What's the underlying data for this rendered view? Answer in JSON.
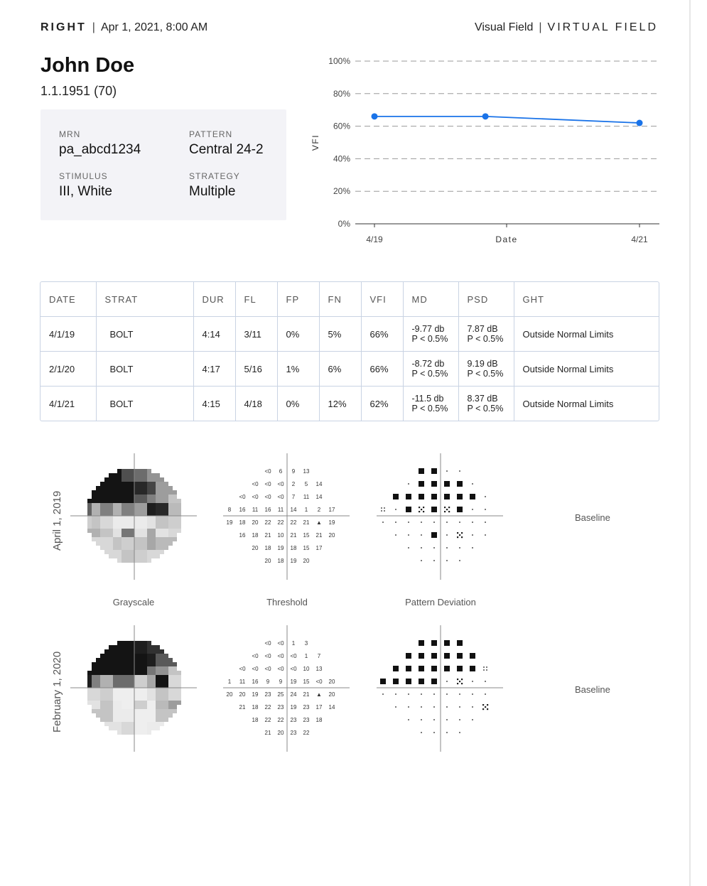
{
  "header": {
    "eye": "RIGHT",
    "datetime": "Apr 1, 2021,  8:00 AM",
    "test_type": "Visual Field",
    "brand": "VIRTUAL FIELD"
  },
  "patient": {
    "name": "John Doe",
    "dob_age": "1.1.1951 (70)"
  },
  "info": {
    "mrn_label": "MRN",
    "mrn": "pa_abcd1234",
    "pattern_label": "PATTERN",
    "pattern": "Central 24-2",
    "stimulus_label": "STIMULUS",
    "stimulus": "III, White",
    "strategy_label": "STRATEGY",
    "strategy": "Multiple"
  },
  "chart_data": {
    "type": "line",
    "ylabel": "VFI",
    "xlabel": "Date",
    "yticks": [
      "0%",
      "20%",
      "40%",
      "60%",
      "80%",
      "100%"
    ],
    "ylim": [
      0,
      100
    ],
    "xtick_labels": [
      "4/19",
      "4/21"
    ],
    "x": [
      "2019-04-01",
      "2020-02-01",
      "2021-04-01"
    ],
    "values": [
      66,
      66,
      62
    ],
    "grid": true,
    "line_color": "#1a73e8"
  },
  "table": {
    "headers": [
      "DATE",
      "STRAT",
      "DUR",
      "FL",
      "FP",
      "FN",
      "VFI",
      "MD",
      "PSD",
      "GHT"
    ],
    "rows": [
      {
        "date": "4/1/19",
        "strat": "BOLT",
        "dur": "4:14",
        "fl": "3/11",
        "fl_flag": true,
        "fp": "0%",
        "fn": "5%",
        "vfi": "66%",
        "md": "-9.77 db",
        "md_p": "P < 0.5%",
        "psd": "7.87 dB",
        "psd_p": "P < 0.5%",
        "ght": "Outside Normal Limits"
      },
      {
        "date": "2/1/20",
        "strat": "BOLT",
        "dur": "4:17",
        "fl": "5/16",
        "fl_flag": true,
        "fp": "1%",
        "fn": "6%",
        "vfi": "66%",
        "md": "-8.72 db",
        "md_p": "P < 0.5%",
        "psd": "9.19 dB",
        "psd_p": "P < 0.5%",
        "ght": "Outside Normal Limits"
      },
      {
        "date": "4/1/21",
        "strat": "BOLT",
        "dur": "4:15",
        "fl": "4/18",
        "fl_flag": false,
        "fp": "0%",
        "fn": "12%",
        "vfi": "62%",
        "md": "-11.5 db",
        "md_p": "P < 0.5%",
        "psd": "8.37 dB",
        "psd_p": "P < 0.5%",
        "ght": "Outside Normal Limits"
      }
    ]
  },
  "captions": {
    "grayscale": "Grayscale",
    "threshold": "Threshold",
    "pattern_deviation": "Pattern Deviation"
  },
  "exams": [
    {
      "date_label": "April 1, 2019",
      "baseline": "Baseline",
      "threshold": [
        [
          "<0",
          "6",
          "9",
          "13"
        ],
        [
          "<0",
          "<0",
          "<0",
          "2",
          "5",
          "14"
        ],
        [
          "<0",
          "<0",
          "<0",
          "<0",
          "7",
          "11",
          "14"
        ],
        [
          "8",
          "16",
          "11",
          "16",
          "11",
          "14",
          "1",
          "2",
          "17"
        ],
        [
          "19",
          "18",
          "20",
          "22",
          "22",
          "22",
          "21",
          "▲",
          "19"
        ],
        [
          "16",
          "18",
          "21",
          "10",
          "21",
          "15",
          "21",
          "20"
        ],
        [
          "20",
          "18",
          "19",
          "18",
          "15",
          "17"
        ],
        [
          "20",
          "18",
          "19",
          "20"
        ]
      ],
      "deviation": [
        [
          "B",
          "B",
          "s",
          "s"
        ],
        [
          "s",
          "B",
          "B",
          "B",
          "B",
          "s"
        ],
        [
          "B",
          "B",
          "B",
          "B",
          "B",
          "B",
          "B",
          "s"
        ],
        [
          "x",
          "s",
          "B",
          "h",
          "B",
          "h",
          "B",
          "s",
          "s"
        ],
        [
          "s",
          "s",
          "s",
          "s",
          "s",
          "s",
          "s",
          "s",
          "s"
        ],
        [
          "s",
          "s",
          "s",
          "B",
          "s",
          "h",
          "s",
          "s"
        ],
        [
          "s",
          "s",
          "s",
          "s",
          "s",
          "s"
        ],
        [
          "s",
          "s",
          "s",
          "s"
        ]
      ]
    },
    {
      "date_label": "February 1, 2020",
      "baseline": "Baseline",
      "threshold": [
        [
          "<0",
          "<0",
          "1",
          "3"
        ],
        [
          "<0",
          "<0",
          "<0",
          "<0",
          "1",
          "7"
        ],
        [
          "<0",
          "<0",
          "<0",
          "<0",
          "<0",
          "10",
          "13"
        ],
        [
          "1",
          "11",
          "16",
          "9",
          "9",
          "19",
          "15",
          "<0",
          "20"
        ],
        [
          "20",
          "20",
          "19",
          "23",
          "25",
          "24",
          "21",
          "▲",
          "20"
        ],
        [
          "21",
          "18",
          "22",
          "23",
          "19",
          "23",
          "17",
          "14"
        ],
        [
          "18",
          "22",
          "22",
          "23",
          "23",
          "18"
        ],
        [
          "21",
          "20",
          "23",
          "22"
        ]
      ],
      "deviation": [
        [
          "B",
          "B",
          "B",
          "B"
        ],
        [
          "B",
          "B",
          "B",
          "B",
          "B",
          "B"
        ],
        [
          "B",
          "B",
          "B",
          "B",
          "B",
          "B",
          "B",
          "x"
        ],
        [
          "B",
          "B",
          "B",
          "B",
          "B",
          "s",
          "h",
          "s",
          "s"
        ],
        [
          "s",
          "s",
          "s",
          "s",
          "s",
          "s",
          "s",
          "s",
          "s"
        ],
        [
          "s",
          "s",
          "s",
          "s",
          "s",
          "s",
          "s",
          "h"
        ],
        [
          "s",
          "s",
          "s",
          "s",
          "s",
          "s"
        ],
        [
          "s",
          "s",
          "s",
          "s"
        ]
      ]
    }
  ]
}
